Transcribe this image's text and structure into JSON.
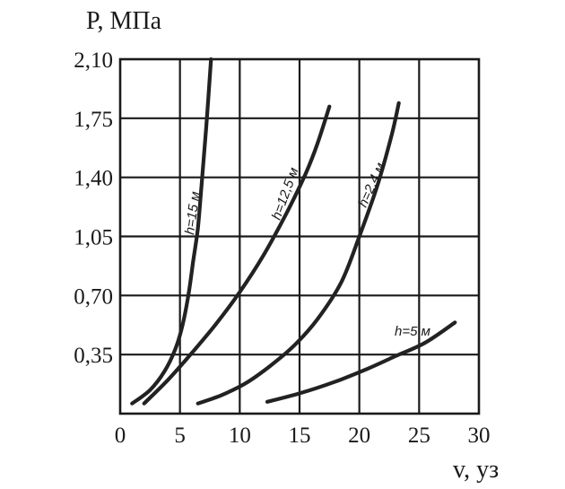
{
  "chart_data": {
    "type": "line",
    "title": "",
    "ylabel": "P, МПа",
    "xlabel": "v, уз",
    "xlim": [
      0,
      30
    ],
    "ylim": [
      0,
      2.1
    ],
    "x_ticks": [
      0,
      5,
      10,
      15,
      20,
      25,
      30
    ],
    "x_tick_labels": [
      "0",
      "5",
      "10",
      "15",
      "20",
      "25",
      "30"
    ],
    "y_ticks": [
      0.35,
      0.7,
      1.05,
      1.4,
      1.75,
      2.1
    ],
    "y_tick_labels": [
      "0,35",
      "0,70",
      "1,05",
      "1,40",
      "1,75",
      "2,10"
    ],
    "grid": true,
    "series": [
      {
        "name": "h=15 м",
        "x": [
          1.0,
          2.5,
          3.7,
          4.6,
          5.2,
          5.7,
          6.1,
          6.5,
          6.8,
          7.2,
          7.6
        ],
        "y": [
          0.06,
          0.14,
          0.25,
          0.38,
          0.52,
          0.7,
          0.9,
          1.1,
          1.35,
          1.7,
          2.1
        ]
      },
      {
        "name": "h=12,5 м",
        "x": [
          2.0,
          4.0,
          6.0,
          8.0,
          10.0,
          12.0,
          14.0,
          15.5,
          16.5,
          17.5
        ],
        "y": [
          0.06,
          0.2,
          0.36,
          0.53,
          0.72,
          0.94,
          1.2,
          1.42,
          1.6,
          1.82
        ]
      },
      {
        "name": "h=2,4 м",
        "x": [
          6.5,
          8.5,
          10.5,
          12.5,
          14.5,
          16.5,
          18.5,
          20.0,
          21.5,
          22.7,
          23.3
        ],
        "y": [
          0.06,
          0.11,
          0.18,
          0.28,
          0.4,
          0.56,
          0.78,
          1.05,
          1.35,
          1.65,
          1.84
        ]
      },
      {
        "name": "h=5 м",
        "x": [
          12.3,
          15.0,
          18.0,
          20.5,
          23.0,
          25.5,
          28.0
        ],
        "y": [
          0.07,
          0.12,
          0.19,
          0.26,
          0.34,
          0.42,
          0.54
        ]
      }
    ]
  }
}
